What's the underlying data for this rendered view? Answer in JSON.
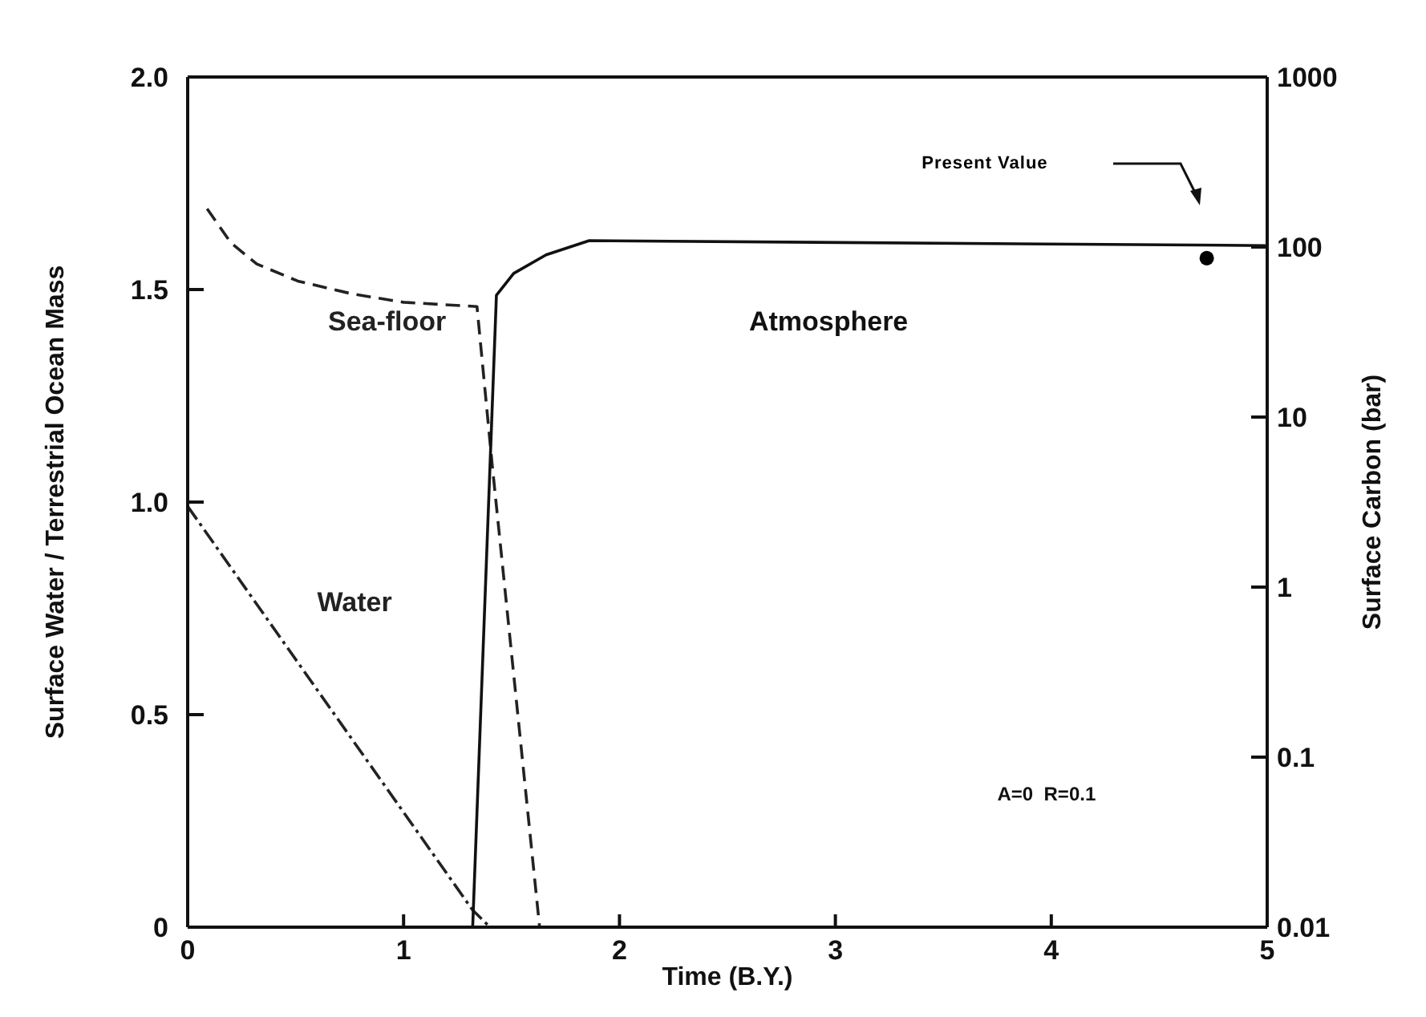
{
  "chart_data": {
    "type": "line",
    "xlabel": "Time (B.Y.)",
    "ylabel": "Surface Water / Terrestrial Ocean Mass",
    "y2label": "Surface Carbon (bar)",
    "xlim": [
      0,
      5
    ],
    "xticks": [
      0,
      1,
      2,
      3,
      4,
      5
    ],
    "ylim": [
      0,
      2
    ],
    "yticks": [
      0,
      0.5,
      {
        "value": 1,
        "label": "1.0"
      },
      1.5,
      {
        "value": 2,
        "label": "2.0"
      }
    ],
    "y2lim": [
      0.01,
      1000
    ],
    "y2ticks": [
      0.01,
      0.1,
      1,
      10,
      100,
      1000
    ],
    "log": "y2",
    "marker": "none",
    "series": [
      {
        "name": "Sea-floor",
        "color": "#222222",
        "line_style": "dashed",
        "x": [
          0.09,
          0.2,
          0.32,
          0.51,
          0.76,
          1.0,
          1.34,
          1.41,
          1.63
        ],
        "values": [
          1.69,
          1.61,
          1.56,
          1.52,
          1.49,
          1.47,
          1.46,
          1.09,
          0
        ]
      },
      {
        "name": "Water",
        "color": "#222222",
        "line_style": "dashdot",
        "x": [
          0,
          1.32,
          1.4
        ],
        "values": [
          0.99,
          0.04,
          0
        ]
      },
      {
        "name": "Atmosphere",
        "color": "#111111",
        "line_style": "solid",
        "axis": "y2",
        "x": [
          1.32,
          1.43,
          1.51,
          1.66,
          1.86,
          5
        ],
        "values": [
          0.01,
          52,
          70,
          90,
          109,
          102
        ]
      },
      {
        "name": "Present Value",
        "type": "scatter",
        "marker": "circle",
        "color": "#000000",
        "axis": "y2",
        "x": [
          4.72
        ],
        "values": [
          86
        ]
      }
    ],
    "annotations": [
      "A=0  R=0.1"
    ]
  }
}
